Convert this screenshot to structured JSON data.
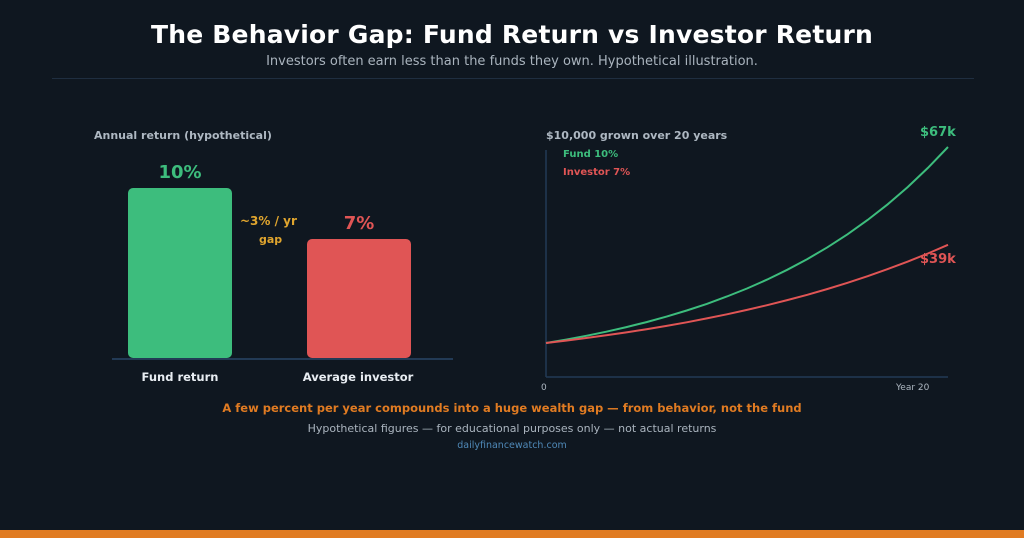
{
  "header": {
    "title": "The Behavior Gap: Fund Return vs Investor Return",
    "subtitle": "Investors often earn less than the funds they own. Hypothetical illustration."
  },
  "colors": {
    "background": "#0f1720",
    "fund": "#3dbd7d",
    "investor": "#e05555",
    "gap": "#e0a52e",
    "accent": "#e07b22",
    "source_link": "#4f89b8"
  },
  "chart_data": [
    {
      "type": "bar",
      "title": "Annual return (hypothetical)",
      "categories": [
        "Fund return",
        "Average investor"
      ],
      "values": [
        10,
        7
      ],
      "value_labels": [
        "10%",
        "7%"
      ],
      "unit": "%",
      "ylim": [
        0,
        10
      ],
      "colors": [
        "#3dbd7d",
        "#e05555"
      ],
      "annotation": {
        "text_line1": "~3% / yr",
        "text_line2": "gap"
      }
    },
    {
      "type": "line",
      "title": "$10,000 grown over 20 years",
      "x": [
        0,
        1,
        2,
        3,
        4,
        5,
        6,
        7,
        8,
        9,
        10,
        11,
        12,
        13,
        14,
        15,
        16,
        17,
        18,
        19,
        20
      ],
      "xticks": [
        "0",
        "Year 20"
      ],
      "series": [
        {
          "name": "Fund 10%",
          "color": "#3dbd7d",
          "rate": 0.1,
          "values": [
            10000,
            11000,
            12100,
            13310,
            14641,
            16105,
            17716,
            19487,
            21436,
            23579,
            25937,
            28531,
            31384,
            34523,
            37975,
            41772,
            45950,
            50545,
            55599,
            61159,
            67275
          ],
          "end_label": "$67k"
        },
        {
          "name": "Investor 7%",
          "color": "#e05555",
          "rate": 0.07,
          "values": [
            10000,
            10700,
            11449,
            12250,
            13108,
            14026,
            15007,
            16058,
            17182,
            18385,
            19672,
            21049,
            22522,
            24098,
            25785,
            27590,
            29522,
            31588,
            33799,
            36165,
            38697
          ],
          "end_label": "$39k"
        }
      ],
      "grid": false,
      "legend_placement": "top-left"
    }
  ],
  "footer": {
    "insight": "A few percent per year compounds into a huge wealth gap — from behavior, not the fund",
    "disclaimer": "Hypothetical figures — for educational purposes only — not actual returns",
    "source": "dailyfinancewatch.com"
  }
}
